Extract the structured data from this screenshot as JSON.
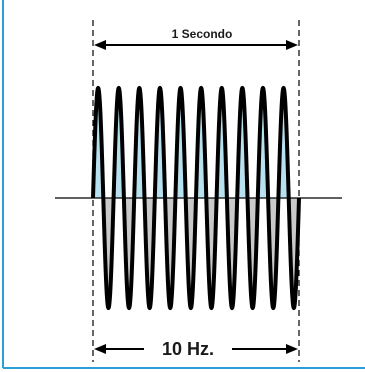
{
  "labels": {
    "duration": "1 Secondo",
    "frequency": "10 Hz."
  },
  "wave": {
    "cycles": 10
  },
  "colors": {
    "frame": "#2b9fd8",
    "positive_fill": "#b7e1ee",
    "negative_fill": "#c9c9c9",
    "wave_stroke": "#000000",
    "text": "#1a1a1a"
  }
}
